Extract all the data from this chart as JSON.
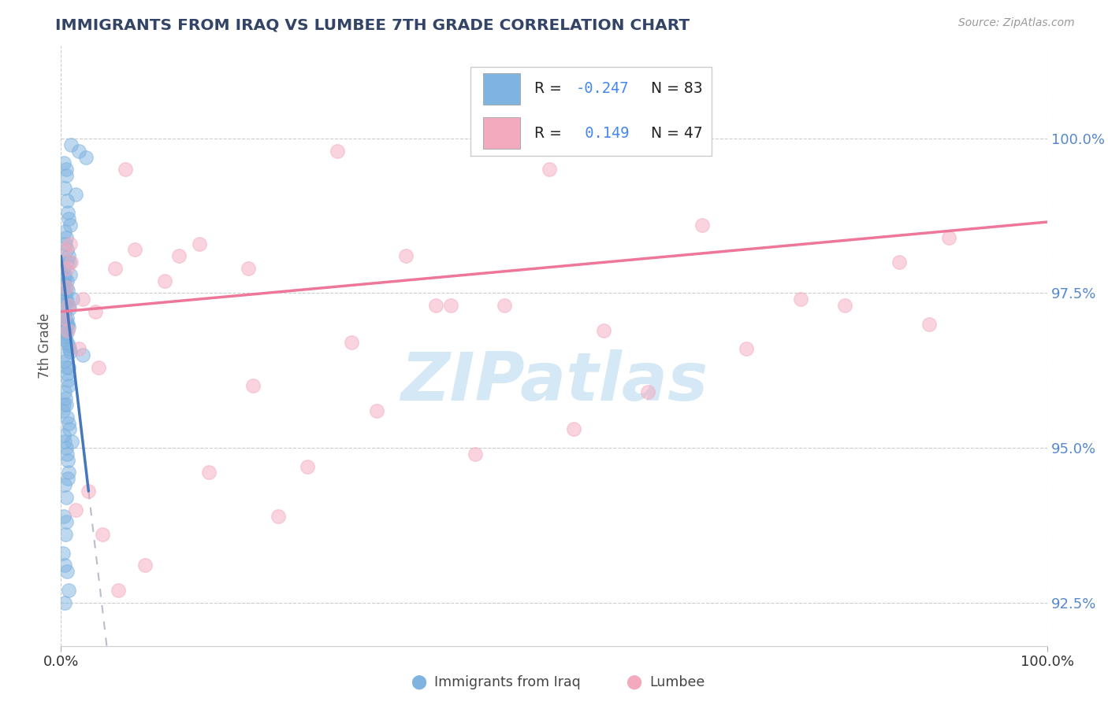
{
  "title": "IMMIGRANTS FROM IRAQ VS LUMBEE 7TH GRADE CORRELATION CHART",
  "source_text": "Source: ZipAtlas.com",
  "ylabel": "7th Grade",
  "xlim": [
    0.0,
    100.0
  ],
  "ylim": [
    91.8,
    101.5
  ],
  "yticks": [
    92.5,
    95.0,
    97.5,
    100.0
  ],
  "ytick_labels": [
    "92.5%",
    "95.0%",
    "97.5%",
    "100.0%"
  ],
  "xtick_labels": [
    "0.0%",
    "100.0%"
  ],
  "legend_R_blue": "-0.247",
  "legend_N_blue": "83",
  "legend_R_pink": " 0.149",
  "legend_N_pink": "47",
  "blue_color": "#7FB3E0",
  "pink_color": "#F4AABE",
  "blue_line_color": "#4477BB",
  "pink_line_color": "#EE7799",
  "dashed_color": "#BBBBCC",
  "watermark": "ZIPatlas",
  "watermark_color": "#D5E8F5",
  "footer_label_iraq": "Immigrants from Iraq",
  "footer_label_lumbee": "Lumbee",
  "background_color": "#FFFFFF",
  "grid_color": "#CCCCCC",
  "blue_scatter_x": [
    1.0,
    1.8,
    2.5,
    0.3,
    0.5,
    0.4,
    0.6,
    0.7,
    0.8,
    0.35,
    0.55,
    0.45,
    0.65,
    0.75,
    0.85,
    0.25,
    0.95,
    0.4,
    0.6,
    0.3,
    0.5,
    0.7,
    0.45,
    0.35,
    0.55,
    0.65,
    0.75,
    0.85,
    0.4,
    0.3,
    0.6,
    0.5,
    0.7,
    0.8,
    0.35,
    0.55,
    0.45,
    0.25,
    0.65,
    0.75,
    0.85,
    0.95,
    0.3,
    0.4,
    0.5,
    0.6,
    0.7,
    0.8,
    0.35,
    0.45,
    0.55,
    0.25,
    0.65,
    0.75,
    0.85,
    0.3,
    0.4,
    0.5,
    0.6,
    0.7,
    0.8,
    0.35,
    0.55,
    0.3,
    0.45,
    0.25,
    0.65,
    0.75,
    0.4,
    0.5,
    1.5,
    0.9,
    0.6,
    1.2,
    2.2,
    0.4,
    0.6,
    0.8,
    0.3,
    1.1,
    0.7,
    0.5,
    0.4
  ],
  "blue_scatter_y": [
    99.9,
    99.8,
    99.7,
    99.6,
    99.4,
    99.2,
    99.0,
    98.8,
    98.7,
    98.5,
    98.4,
    98.3,
    98.2,
    98.1,
    98.0,
    97.9,
    97.8,
    97.75,
    97.7,
    97.65,
    97.6,
    97.55,
    97.5,
    97.45,
    97.4,
    97.35,
    97.3,
    97.25,
    97.2,
    97.15,
    97.1,
    97.05,
    97.0,
    96.95,
    96.9,
    96.85,
    96.8,
    96.75,
    96.7,
    96.65,
    96.6,
    96.55,
    96.5,
    96.4,
    96.3,
    96.2,
    96.1,
    96.0,
    95.9,
    95.8,
    95.7,
    95.6,
    95.5,
    95.4,
    95.3,
    95.2,
    95.1,
    95.0,
    94.9,
    94.8,
    94.6,
    94.4,
    94.2,
    93.9,
    93.6,
    93.3,
    93.0,
    92.7,
    92.5,
    99.5,
    99.1,
    98.6,
    98.0,
    97.4,
    96.5,
    97.8,
    97.0,
    96.3,
    95.7,
    95.1,
    94.5,
    93.8,
    93.1
  ],
  "pink_scatter_x": [
    0.4,
    0.6,
    0.5,
    0.8,
    0.3,
    0.7,
    1.8,
    2.2,
    3.8,
    5.5,
    7.5,
    10.5,
    14.0,
    19.0,
    25.0,
    35.0,
    45.0,
    55.0,
    65.0,
    75.0,
    85.0,
    90.0,
    32.0,
    42.0,
    52.0,
    22.0,
    15.0,
    8.5,
    5.8,
    4.2,
    2.8,
    1.5,
    1.0,
    0.9,
    19.5,
    29.5,
    39.5,
    49.5,
    59.5,
    69.5,
    79.5,
    88.0,
    3.5,
    6.5,
    12.0,
    28.0,
    38.0
  ],
  "pink_scatter_y": [
    98.2,
    97.9,
    97.6,
    97.3,
    97.1,
    96.9,
    96.6,
    97.4,
    96.3,
    97.9,
    98.2,
    97.7,
    98.3,
    97.9,
    94.7,
    98.1,
    97.3,
    96.9,
    98.6,
    97.4,
    98.0,
    98.4,
    95.6,
    94.9,
    95.3,
    93.9,
    94.6,
    93.1,
    92.7,
    93.6,
    94.3,
    94.0,
    98.0,
    98.3,
    96.0,
    96.7,
    97.3,
    99.5,
    95.9,
    96.6,
    97.3,
    97.0,
    97.2,
    99.5,
    98.1,
    99.8,
    97.3
  ],
  "blue_line_x0": 0.0,
  "blue_line_y0": 98.1,
  "blue_line_x1": 2.8,
  "blue_line_y1": 94.3,
  "pink_line_x0": 0.0,
  "pink_line_y0": 97.2,
  "pink_line_x1": 100.0,
  "pink_line_y1": 98.65
}
